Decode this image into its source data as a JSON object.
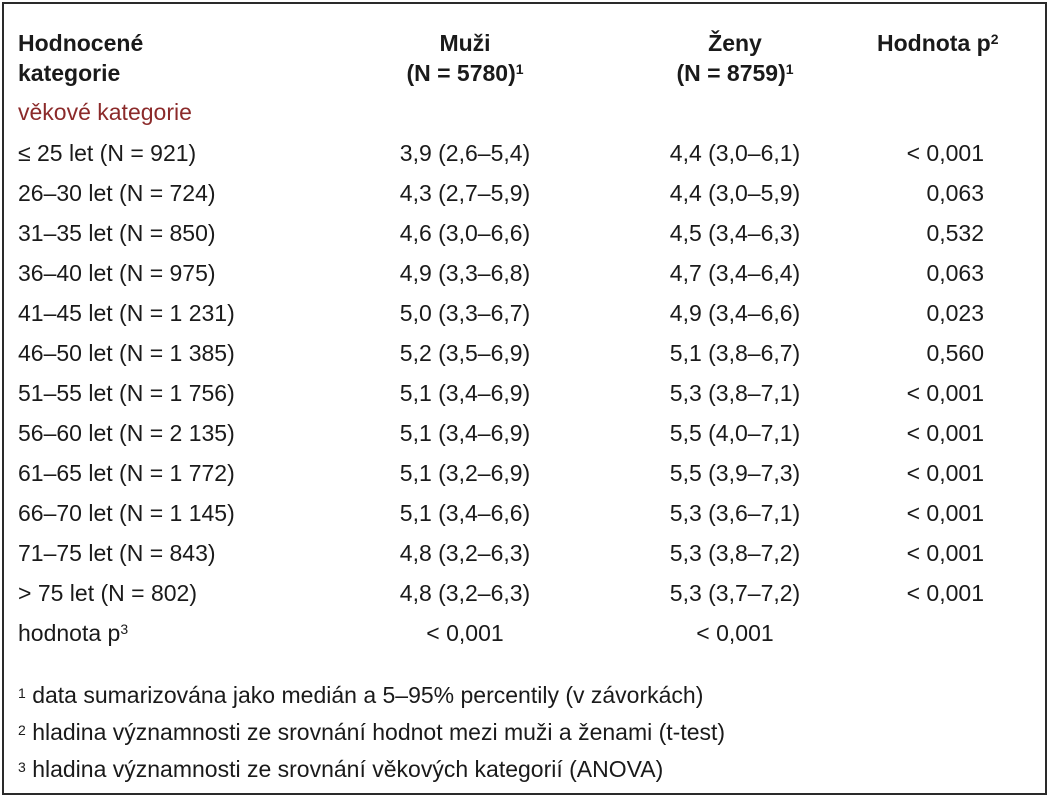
{
  "header": {
    "col1_line1": "Hodnocené",
    "col1_line2": "kategorie",
    "col2_line1": "Muži",
    "col2_line2": "(N = 5780)",
    "col2_sup": "1",
    "col3_line1": "Ženy",
    "col3_line2": "(N = 8759)",
    "col3_sup": "1",
    "col4": "Hodnota p",
    "col4_sup": "2"
  },
  "category_label": "věkové kategorie",
  "rows": [
    {
      "category": "≤ 25 let (N = 921)",
      "men": "3,9 (2,6–5,4)",
      "women": "4,4 (3,0–6,1)",
      "p": "< 0,001"
    },
    {
      "category": "26–30 let (N = 724)",
      "men": "4,3 (2,7–5,9)",
      "women": "4,4 (3,0–5,9)",
      "p": "0,063"
    },
    {
      "category": "31–35 let (N = 850)",
      "men": "4,6 (3,0–6,6)",
      "women": "4,5 (3,4–6,3)",
      "p": "0,532"
    },
    {
      "category": "36–40 let (N = 975)",
      "men": "4,9 (3,3–6,8)",
      "women": "4,7 (3,4–6,4)",
      "p": "0,063"
    },
    {
      "category": "41–45 let (N = 1 231)",
      "men": "5,0 (3,3–6,7)",
      "women": "4,9 (3,4–6,6)",
      "p": "0,023"
    },
    {
      "category": "46–50 let (N = 1 385)",
      "men": "5,2 (3,5–6,9)",
      "women": "5,1 (3,8–6,7)",
      "p": "0,560"
    },
    {
      "category": "51–55 let (N = 1 756)",
      "men": "5,1 (3,4–6,9)",
      "women": "5,3 (3,8–7,1)",
      "p": "< 0,001"
    },
    {
      "category": "56–60 let (N = 2 135)",
      "men": "5,1 (3,4–6,9)",
      "women": "5,5 (4,0–7,1)",
      "p": "< 0,001"
    },
    {
      "category": "61–65 let (N = 1 772)",
      "men": "5,1 (3,2–6,9)",
      "women": "5,5 (3,9–7,3)",
      "p": "< 0,001"
    },
    {
      "category": "66–70 let (N = 1 145)",
      "men": "5,1 (3,4–6,6)",
      "women": "5,3 (3,6–7,1)",
      "p": "< 0,001"
    },
    {
      "category": "71–75 let (N = 843)",
      "men": "4,8 (3,2–6,3)",
      "women": "5,3 (3,8–7,2)",
      "p": "< 0,001"
    },
    {
      "category": "> 75 let (N = 802)",
      "men": "4,8 (3,2–6,3)",
      "women": "5,3 (3,7–7,2)",
      "p": "< 0,001"
    }
  ],
  "pvalue_row": {
    "label": "hodnota p",
    "label_sup": "3",
    "men": "< 0,001",
    "women": "< 0,001"
  },
  "footnotes": [
    {
      "mark": "1",
      "text": "data sumarizována jako medián a 5–95% percentily (v závorkách)"
    },
    {
      "mark": "2",
      "text": "hladina významnosti ze srovnání hodnot mezi muži a ženami (t-test)"
    },
    {
      "mark": "3",
      "text": "hladina významnosti ze srovnání věkových kategorií (ANOVA)"
    }
  ],
  "colors": {
    "category_label": "#8b2a2a",
    "text": "#1a1a1a",
    "border": "#2a2a2a"
  }
}
